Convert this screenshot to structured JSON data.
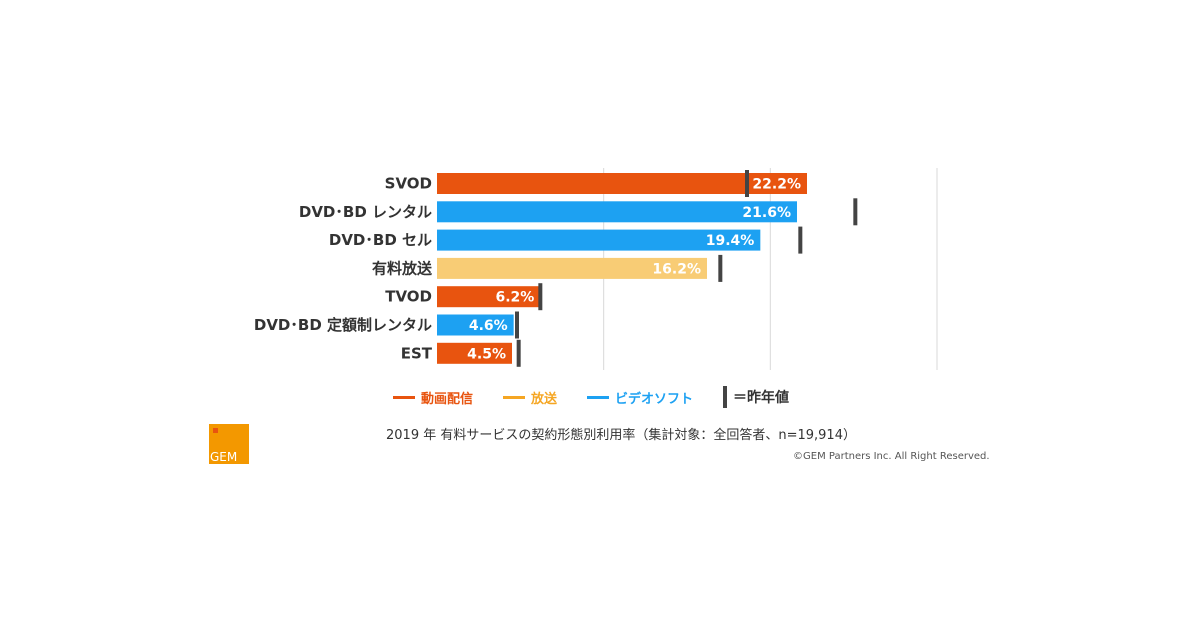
{
  "chart_data": {
    "type": "bar",
    "orientation": "horizontal",
    "unit": "%",
    "categories": [
      "SVOD",
      "DVD･BD レンタル",
      "DVD･BD セル",
      "有料放送",
      "TVOD",
      "DVD･BD 定額制レンタル",
      "EST"
    ],
    "values": [
      22.2,
      21.6,
      19.4,
      16.2,
      6.2,
      4.6,
      4.5
    ],
    "value_labels": [
      "22.2%",
      "21.6%",
      "19.4%",
      "16.2%",
      "6.2%",
      "4.6%",
      "4.5%"
    ],
    "groups": [
      "動画配信",
      "ビデオソフト",
      "ビデオソフト",
      "放送",
      "動画配信",
      "ビデオソフト",
      "動画配信"
    ],
    "previous_year": [
      18.6,
      25.1,
      21.8,
      17.0,
      6.2,
      4.8,
      4.9
    ],
    "xlim": [
      0,
      30
    ],
    "gridlines": [
      10,
      20,
      30
    ],
    "legend": [
      {
        "name": "動画配信",
        "color": "#e8540f"
      },
      {
        "name": "放送",
        "color": "#f5a623"
      },
      {
        "name": "ビデオソフト",
        "color": "#1da1f2"
      }
    ],
    "previous_legend": "＝昨年値",
    "bar_colors": {
      "動画配信": "#e8540f",
      "放送": "#f8cc75",
      "ビデオソフト": "#1da1f2"
    },
    "legend_placement": "bottom"
  },
  "caption": "2019 年 有料サービスの契約形態別利用率（集計対象：全回答者、n=19,914）",
  "copyright": "©GEM Partners Inc. All Right Reserved.",
  "logo": {
    "text": "GEM",
    "color": "#f39800"
  }
}
